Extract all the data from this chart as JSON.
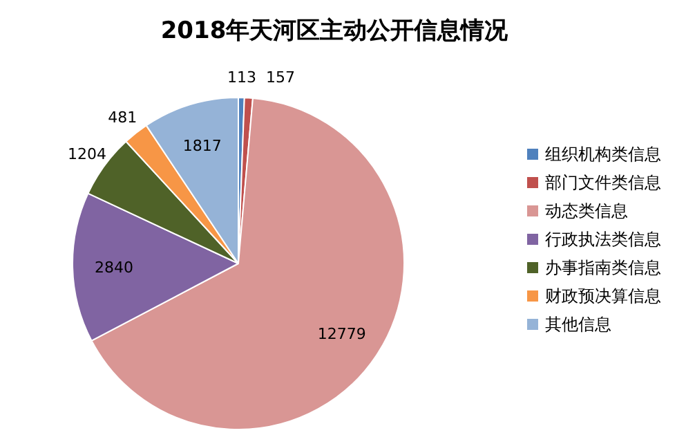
{
  "chart_data": {
    "type": "pie",
    "title": "2018年天河区主动公开信息情况",
    "categories": [
      "组织机构类信息",
      "部门文件类信息",
      "动态类信息",
      "行政执法类信息",
      "办事指南类信息",
      "财政预决算信息",
      "其他信息"
    ],
    "values": [
      113,
      157,
      12779,
      2840,
      1204,
      481,
      1817
    ],
    "colors": [
      "#4f81bd",
      "#c0504d",
      "#d99694",
      "#8064a2",
      "#4f6228",
      "#f79646",
      "#95b3d7"
    ],
    "data_labels": true,
    "legend": "right"
  }
}
